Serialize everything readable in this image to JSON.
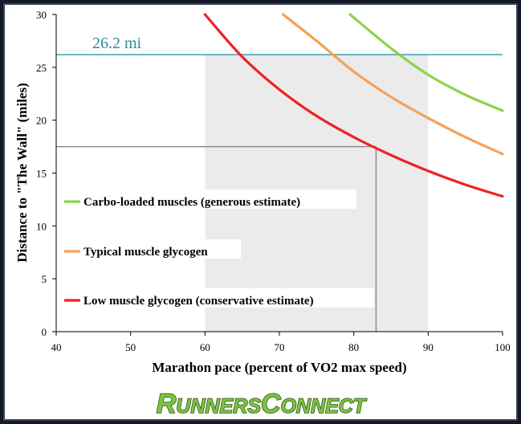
{
  "chart_data": {
    "type": "line",
    "xlabel": "Marathon pace (percent of  VO2 max speed)",
    "ylabel": "Distance to \"The Wall\" (miles)",
    "xlim": [
      40,
      100
    ],
    "ylim": [
      0,
      30
    ],
    "x_ticks": [
      "40",
      "50",
      "60",
      "70",
      "80",
      "90",
      "100"
    ],
    "y_ticks": [
      "0",
      "5",
      "10",
      "15",
      "20",
      "25",
      "30"
    ],
    "grid": false,
    "legend_position": "left",
    "reference_line": {
      "y": 26.2,
      "label": "26.2 mi",
      "color": "#3a9db3"
    },
    "shaded_band": {
      "x_from": 60,
      "x_to": 90,
      "color": "#ebebeb"
    },
    "marker_point": {
      "x": 83,
      "y": 17.5
    },
    "series": [
      {
        "name": "Carbo-loaded muscles (generous estimate)",
        "color": "#8dd24a",
        "x": [
          79.5,
          85,
          90,
          95,
          100
        ],
        "y": [
          30,
          26.8,
          24.3,
          22.4,
          20.9
        ]
      },
      {
        "name": "Typical muscle glycogen",
        "color": "#f5a157",
        "x": [
          70.5,
          75,
          80,
          85,
          90,
          95,
          100
        ],
        "y": [
          30,
          27.5,
          24.6,
          22.2,
          20.2,
          18.4,
          16.8
        ]
      },
      {
        "name": "Low muscle glycogen (conservative estimate)",
        "color": "#ee2222",
        "x": [
          60,
          65,
          70,
          75,
          80,
          85,
          90,
          95,
          100
        ],
        "y": [
          30,
          26,
          22.9,
          20.4,
          18.4,
          16.7,
          15.2,
          13.9,
          12.8
        ]
      }
    ]
  },
  "logo": {
    "text_big_1": "R",
    "text_small_1": "UNNERS",
    "text_big_2": "C",
    "text_small_2": "ONNECT"
  }
}
